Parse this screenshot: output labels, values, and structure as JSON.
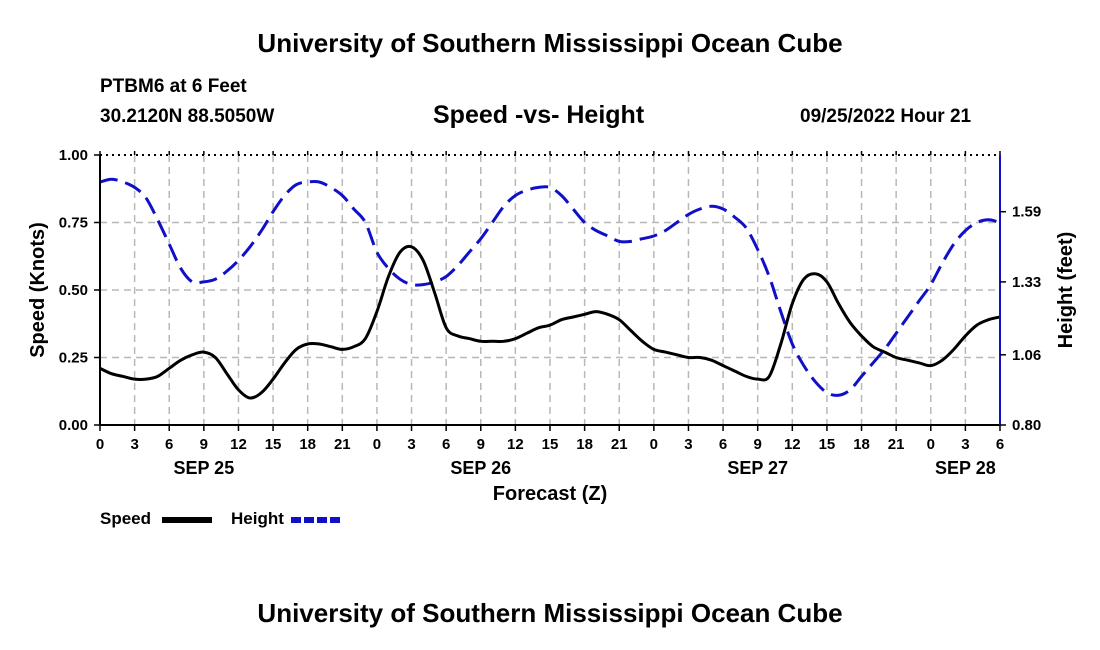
{
  "header": {
    "title": "University of Southern Mississippi Ocean Cube",
    "station": "PTBM6 at 6 Feet",
    "coords": "30.2120N  88.5050W",
    "subtitle": "Speed -vs- Height",
    "datetime": "09/25/2022 Hour 21"
  },
  "footer": {
    "title": "University of Southern Mississippi Ocean Cube"
  },
  "legend": {
    "speed_label": "Speed",
    "height_label": "Height"
  },
  "colors": {
    "speed": "#000000",
    "height": "#1010c8",
    "grid": "#b8b8b8"
  },
  "chart_data": {
    "type": "line",
    "title": "Speed -vs- Height",
    "xlabel": "Forecast (Z)",
    "ylabel": "Speed (Knots)",
    "y2label": "Height (feet)",
    "grid": true,
    "x_range": [
      0,
      78
    ],
    "x_tick_hours": [
      0,
      3,
      6,
      9,
      12,
      15,
      18,
      21,
      24,
      27,
      30,
      33,
      36,
      39,
      42,
      45,
      48,
      51,
      54,
      57,
      60,
      63,
      66,
      69,
      72,
      75,
      78
    ],
    "x_tick_labels": [
      "0",
      "3",
      "6",
      "9",
      "12",
      "15",
      "18",
      "21",
      "0",
      "3",
      "6",
      "9",
      "12",
      "15",
      "18",
      "21",
      "0",
      "3",
      "6",
      "9",
      "12",
      "15",
      "18",
      "21",
      "0",
      "3",
      "6"
    ],
    "day_labels": [
      {
        "hour": 9,
        "label": "SEP 25"
      },
      {
        "hour": 33,
        "label": "SEP 26"
      },
      {
        "hour": 57,
        "label": "SEP 27"
      },
      {
        "hour": 75,
        "label": "SEP 28"
      }
    ],
    "ylim": [
      0,
      1.0
    ],
    "y_ticks": [
      0,
      0.25,
      0.5,
      0.75,
      1.0
    ],
    "y_tick_labels": [
      "0.00",
      "0.25",
      "0.50",
      "0.75",
      "1.00"
    ],
    "y2lim": [
      0.8,
      1.8
    ],
    "y2_ticks": [
      0.8,
      1.06,
      1.33,
      1.59
    ],
    "y2_tick_labels": [
      "0.80",
      "1.06",
      "1.33",
      "1.59"
    ],
    "series": [
      {
        "name": "Speed",
        "axis": "left",
        "color": "#000000",
        "dash": "solid",
        "x": [
          0,
          1,
          2,
          3,
          4,
          5,
          6,
          7,
          8,
          9,
          10,
          11,
          12,
          13,
          14,
          15,
          16,
          17,
          18,
          19,
          20,
          21,
          22,
          23,
          24,
          25,
          26,
          27,
          28,
          29,
          30,
          31,
          32,
          33,
          34,
          35,
          36,
          37,
          38,
          39,
          40,
          41,
          42,
          43,
          44,
          45,
          46,
          47,
          48,
          49,
          50,
          51,
          52,
          53,
          54,
          55,
          56,
          57,
          58,
          59,
          60,
          61,
          62,
          63,
          64,
          65,
          66,
          67,
          68,
          69,
          70,
          71,
          72,
          73,
          74,
          75,
          76,
          77,
          78
        ],
        "values": [
          0.21,
          0.19,
          0.18,
          0.17,
          0.17,
          0.18,
          0.21,
          0.24,
          0.26,
          0.27,
          0.25,
          0.19,
          0.13,
          0.1,
          0.12,
          0.17,
          0.23,
          0.28,
          0.3,
          0.3,
          0.29,
          0.28,
          0.29,
          0.32,
          0.42,
          0.55,
          0.64,
          0.66,
          0.61,
          0.49,
          0.36,
          0.33,
          0.32,
          0.31,
          0.31,
          0.31,
          0.32,
          0.34,
          0.36,
          0.37,
          0.39,
          0.4,
          0.41,
          0.42,
          0.41,
          0.39,
          0.35,
          0.31,
          0.28,
          0.27,
          0.26,
          0.25,
          0.25,
          0.24,
          0.22,
          0.2,
          0.18,
          0.17,
          0.18,
          0.3,
          0.45,
          0.54,
          0.56,
          0.53,
          0.45,
          0.38,
          0.33,
          0.29,
          0.27,
          0.25,
          0.24,
          0.23,
          0.22,
          0.24,
          0.28,
          0.33,
          0.37,
          0.39,
          0.4
        ]
      },
      {
        "name": "Height",
        "axis": "right",
        "color": "#1010c8",
        "dash": "dashed",
        "x": [
          0,
          1,
          2,
          3,
          4,
          5,
          6,
          7,
          8,
          9,
          10,
          11,
          12,
          13,
          14,
          15,
          16,
          17,
          18,
          19,
          20,
          21,
          22,
          23,
          24,
          25,
          26,
          27,
          28,
          29,
          30,
          31,
          32,
          33,
          34,
          35,
          36,
          37,
          38,
          39,
          40,
          41,
          42,
          43,
          44,
          45,
          46,
          47,
          48,
          49,
          50,
          51,
          52,
          53,
          54,
          55,
          56,
          57,
          58,
          59,
          60,
          61,
          62,
          63,
          64,
          65,
          66,
          67,
          68,
          69,
          70,
          71,
          72,
          73,
          74,
          75,
          76,
          77,
          78
        ],
        "values": [
          1.7,
          1.71,
          1.7,
          1.68,
          1.64,
          1.56,
          1.47,
          1.38,
          1.33,
          1.33,
          1.34,
          1.37,
          1.41,
          1.46,
          1.52,
          1.59,
          1.65,
          1.69,
          1.7,
          1.7,
          1.68,
          1.65,
          1.6,
          1.55,
          1.44,
          1.38,
          1.34,
          1.32,
          1.32,
          1.33,
          1.35,
          1.39,
          1.44,
          1.49,
          1.55,
          1.61,
          1.65,
          1.67,
          1.68,
          1.68,
          1.65,
          1.6,
          1.55,
          1.52,
          1.5,
          1.48,
          1.48,
          1.49,
          1.5,
          1.52,
          1.55,
          1.58,
          1.6,
          1.61,
          1.6,
          1.57,
          1.53,
          1.45,
          1.35,
          1.22,
          1.1,
          1.02,
          0.96,
          0.92,
          0.91,
          0.93,
          0.98,
          1.03,
          1.08,
          1.14,
          1.2,
          1.26,
          1.32,
          1.4,
          1.47,
          1.52,
          1.55,
          1.56,
          1.55
        ]
      }
    ]
  }
}
